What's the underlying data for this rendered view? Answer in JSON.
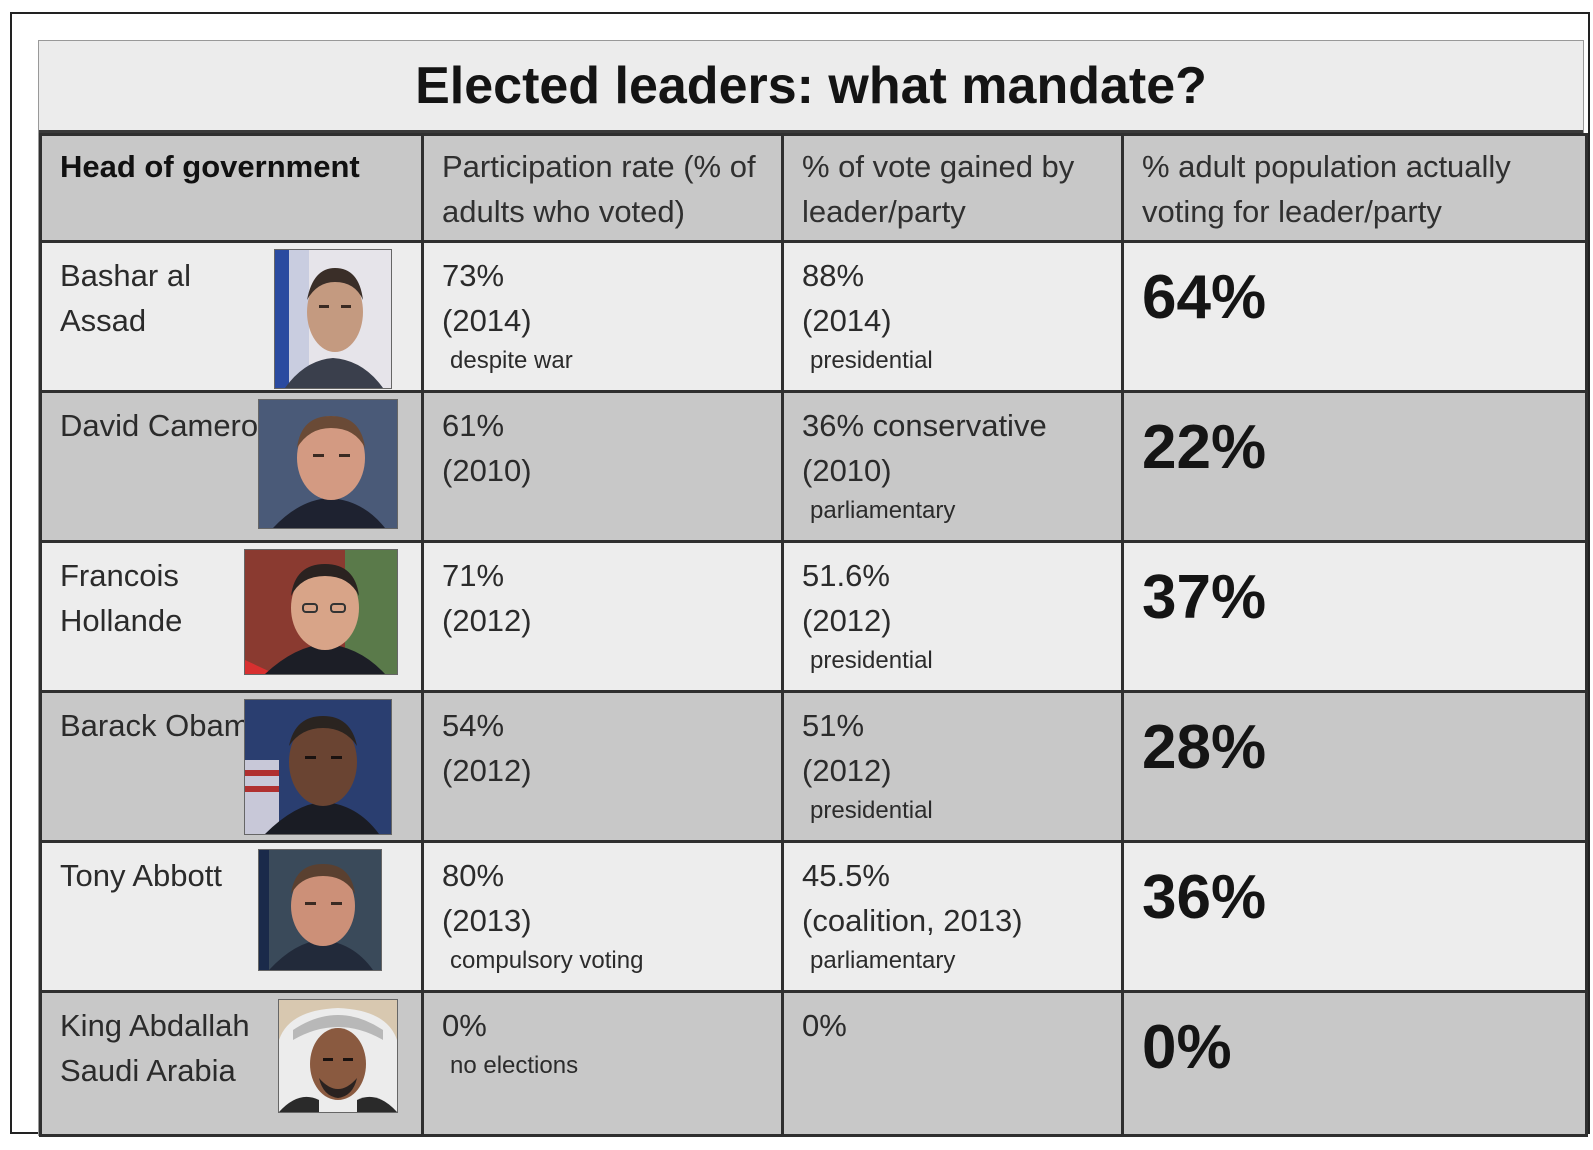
{
  "title": "Elected leaders: what mandate?",
  "headers": {
    "c1": "Head of government",
    "c2": "Participation rate (% of adults who voted)",
    "c3": "% of vote gained by leader/party",
    "c4": "% adult population actually voting for leader/party"
  },
  "rows": [
    {
      "name": "Bashar al Assad",
      "participation": "73%",
      "participation_year": "(2014)",
      "participation_note": "despite war",
      "vote": "88%",
      "vote_year": "(2014)",
      "vote_note": "presidential",
      "adult_pct": "64%"
    },
    {
      "name": "David Cameron",
      "participation": "61%",
      "participation_year": "(2010)",
      "participation_note": "",
      "vote": "36% conservative",
      "vote_year": "(2010)",
      "vote_note": "parliamentary",
      "adult_pct": "22%"
    },
    {
      "name": "Francois Hollande",
      "participation": "71%",
      "participation_year": "(2012)",
      "participation_note": "",
      "vote": "51.6%",
      "vote_year": "(2012)",
      "vote_note": "presidential",
      "adult_pct": "37%"
    },
    {
      "name": "Barack Obama",
      "participation": "54%",
      "participation_year": "(2012)",
      "participation_note": "",
      "vote": "51%",
      "vote_year": "(2012)",
      "vote_note": "presidential",
      "adult_pct": "28%"
    },
    {
      "name": "Tony Abbott",
      "participation": "80%",
      "participation_year": "(2013)",
      "participation_note": "compulsory voting",
      "vote": "45.5%",
      "vote_year": "(coalition, 2013)",
      "vote_note": "parliamentary",
      "adult_pct": "36%"
    },
    {
      "name": "King Abdallah Saudi Arabia",
      "participation": "0%",
      "participation_year": "",
      "participation_note": "no elections",
      "vote": "0%",
      "vote_year": "",
      "vote_note": "",
      "adult_pct": "0%"
    }
  ],
  "chart_data": {
    "type": "table",
    "title": "Elected leaders: what mandate?",
    "columns": [
      "Head of government",
      "Participation rate (% of adults who voted)",
      "% of vote gained by leader/party",
      "% adult population actually voting for leader/party"
    ],
    "rows": [
      [
        "Bashar al Assad",
        "73% (2014) despite war",
        "88% (2014) presidential",
        "64%"
      ],
      [
        "David Cameron",
        "61% (2010)",
        "36% conservative (2010) parliamentary",
        "22%"
      ],
      [
        "Francois Hollande",
        "71% (2012)",
        "51.6% (2012) presidential",
        "37%"
      ],
      [
        "Barack Obama",
        "54% (2012)",
        "51% (2012) presidential",
        "28%"
      ],
      [
        "Tony Abbott",
        "80% (2013) compulsory voting",
        "45.5% (coalition, 2013) parliamentary",
        "36%"
      ],
      [
        "King Abdallah Saudi Arabia",
        "0% no elections",
        "0%",
        "0%"
      ]
    ]
  }
}
